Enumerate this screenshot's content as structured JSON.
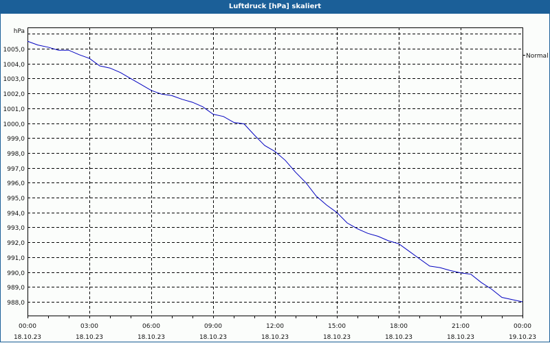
{
  "window": {
    "title": "Luftdruck [hPa] skaliert"
  },
  "colors": {
    "titlebar": "#1b5f98",
    "line": "#0000c0",
    "grid": "#000000",
    "background": "#fbfdfb"
  },
  "chart_data": {
    "type": "line",
    "title": "Luftdruck [hPa] skaliert",
    "ylabel": "hPa",
    "xlabel": "",
    "ylim": [
      987.0,
      1006.5
    ],
    "y_ticks": [
      "1005,0",
      "1004,0",
      "1003,0",
      "1002,0",
      "1001,0",
      "1000,0",
      "999,0",
      "998,0",
      "997,0",
      "996,0",
      "995,0",
      "994,0",
      "993,0",
      "992,0",
      "991,0",
      "990,0",
      "989,0",
      "988,0"
    ],
    "x_ticks": [
      {
        "time": "00:00",
        "date": "18.10.23"
      },
      {
        "time": "03:00",
        "date": "18.10.23"
      },
      {
        "time": "06:00",
        "date": "18.10.23"
      },
      {
        "time": "09:00",
        "date": "18.10.23"
      },
      {
        "time": "12:00",
        "date": "18.10.23"
      },
      {
        "time": "15:00",
        "date": "18.10.23"
      },
      {
        "time": "18:00",
        "date": "18.10.23"
      },
      {
        "time": "21:00",
        "date": "18.10.23"
      },
      {
        "time": "00:00",
        "date": "19.10.23"
      }
    ],
    "grid": true,
    "legend": {
      "position": "right",
      "entries": [
        "Normal"
      ]
    },
    "series": [
      {
        "name": "Normal",
        "x_hours": [
          0,
          0.5,
          1,
          1.5,
          2,
          2.5,
          3,
          3.5,
          4,
          4.5,
          5,
          5.5,
          6,
          6.5,
          7,
          7.5,
          8,
          8.5,
          9,
          9.5,
          10,
          10.5,
          11,
          11.5,
          12,
          12.5,
          13,
          13.5,
          14,
          14.5,
          15,
          15.5,
          16,
          16.5,
          17,
          17.5,
          18,
          18.5,
          19,
          19.5,
          20,
          20.5,
          21,
          21.5,
          22,
          22.5,
          23,
          23.5,
          24
        ],
        "values": [
          1005.5,
          1005.25,
          1005.1,
          1004.9,
          1004.9,
          1004.6,
          1004.35,
          1003.85,
          1003.7,
          1003.4,
          1003.0,
          1002.6,
          1002.2,
          1001.95,
          1001.85,
          1001.6,
          1001.4,
          1001.1,
          1000.6,
          1000.45,
          1000.05,
          999.95,
          999.2,
          998.5,
          998.1,
          997.5,
          996.7,
          996.0,
          995.1,
          994.5,
          994.0,
          993.3,
          992.9,
          992.6,
          992.4,
          992.1,
          991.9,
          991.4,
          990.9,
          990.4,
          990.3,
          990.1,
          989.95,
          989.85,
          989.3,
          988.85,
          988.3,
          988.15,
          988.0
        ]
      }
    ]
  }
}
